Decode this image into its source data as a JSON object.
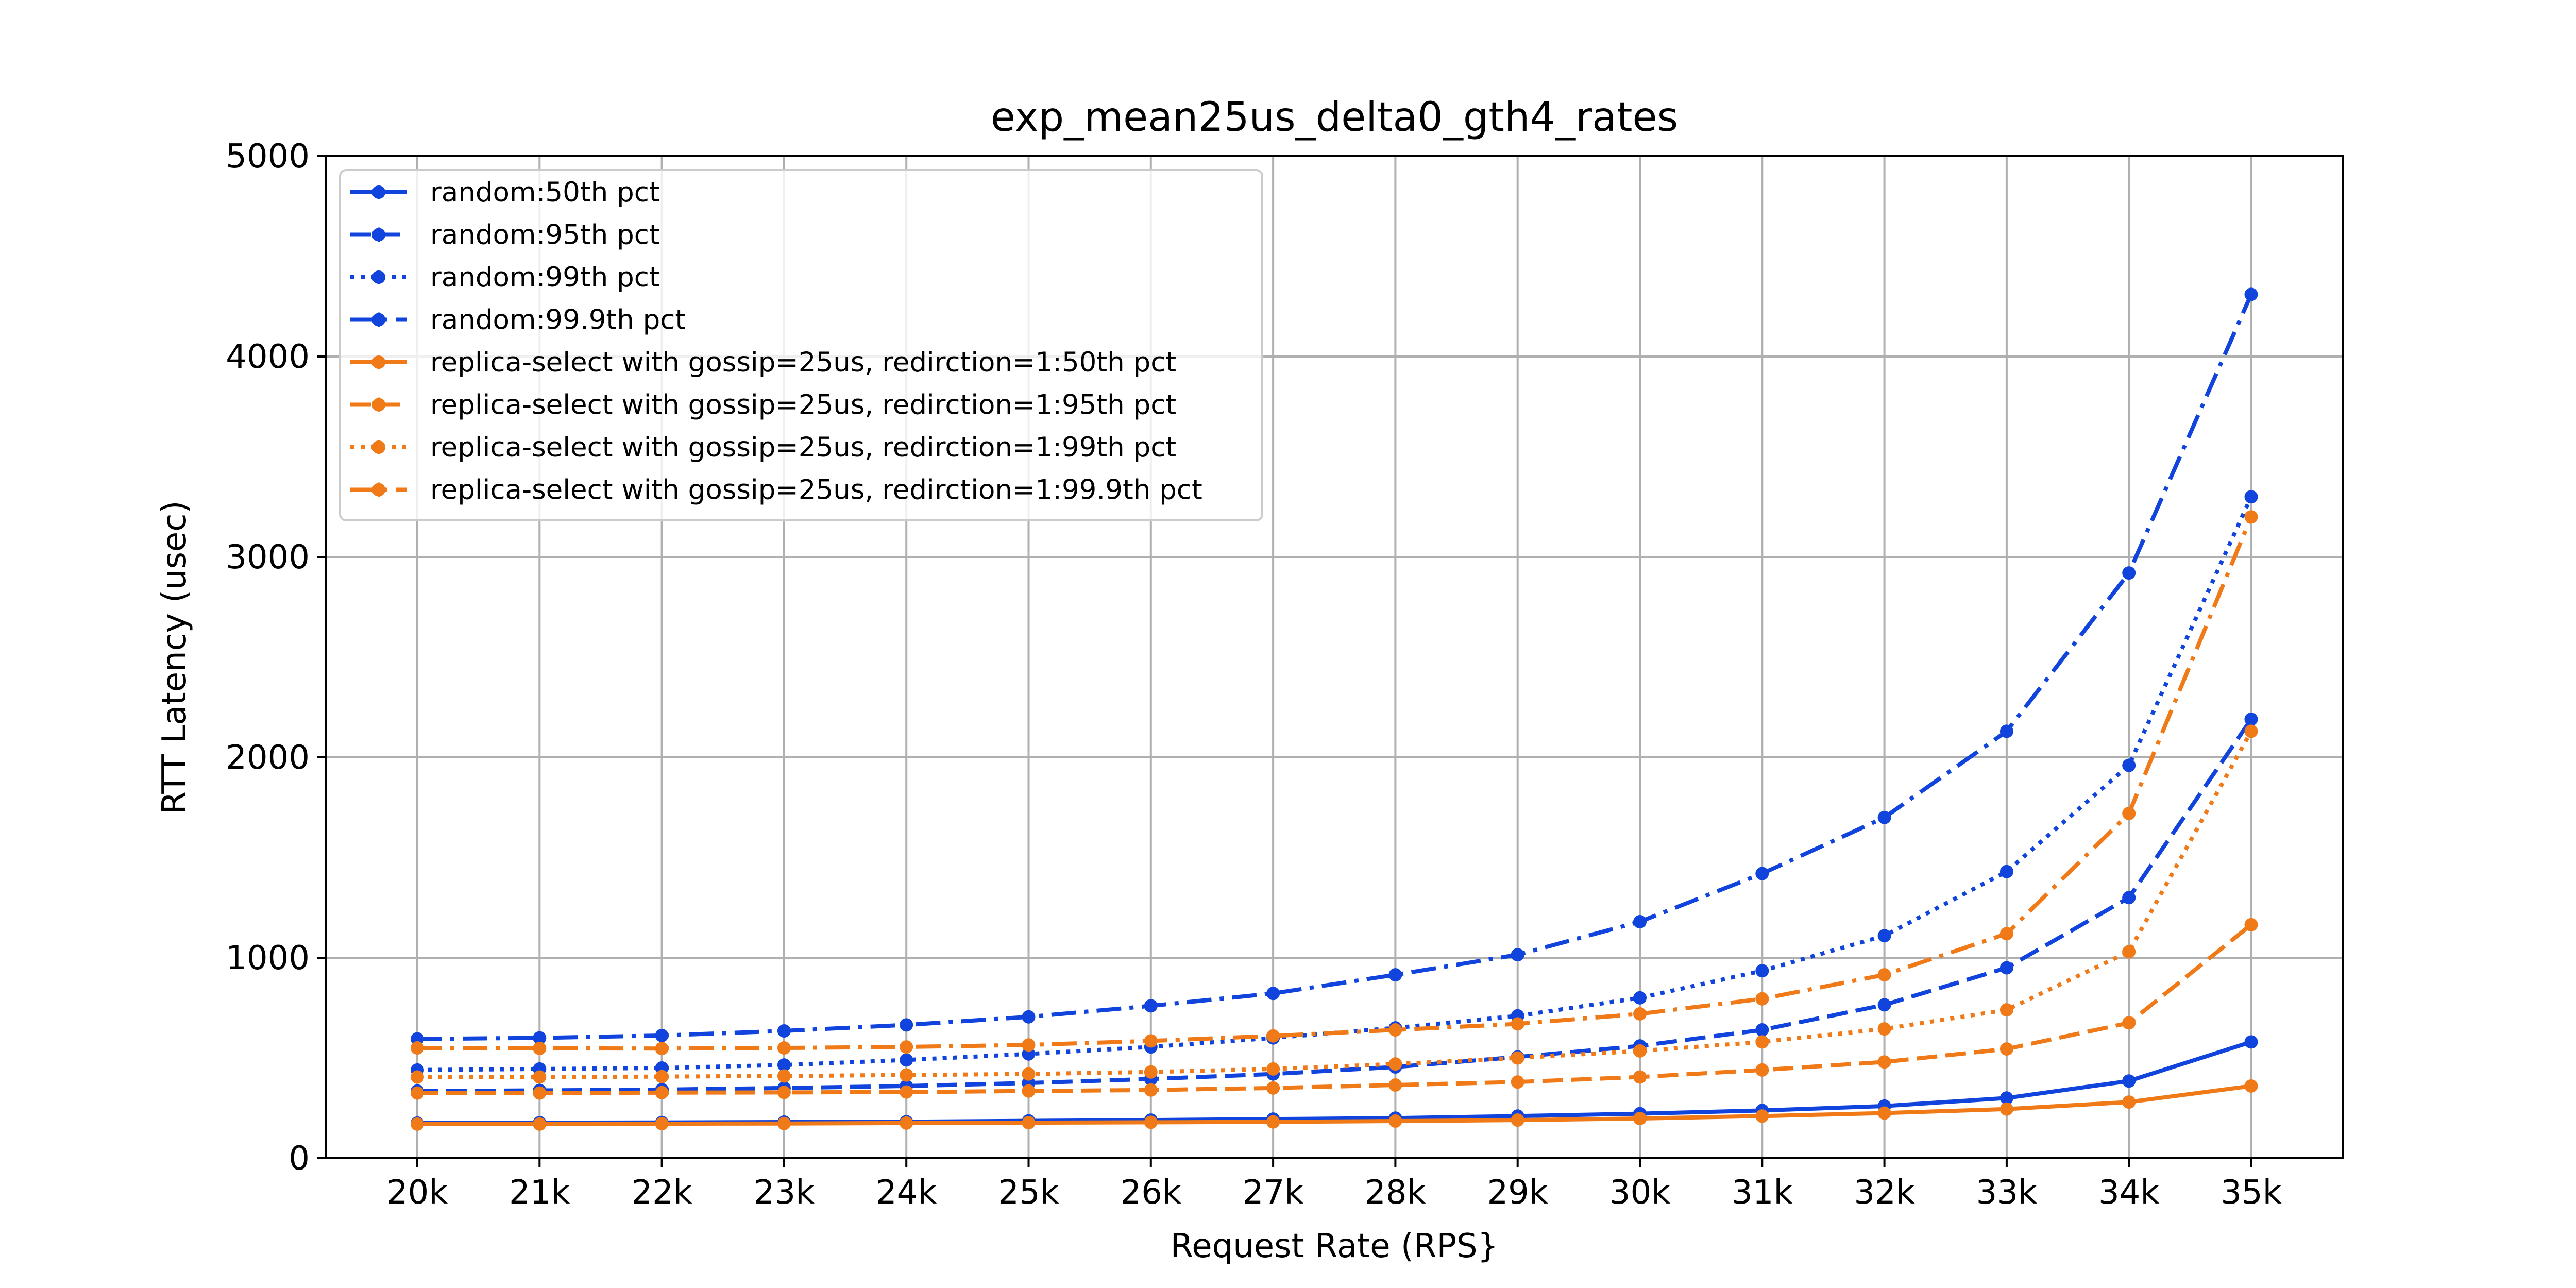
{
  "chart_data": {
    "type": "line",
    "title": "exp_mean25us_delta0_gth4_rates",
    "xlabel": "Request Rate (RPS}",
    "ylabel": "RTT Latency (usec)",
    "categories": [
      "20k",
      "21k",
      "22k",
      "23k",
      "24k",
      "25k",
      "26k",
      "27k",
      "28k",
      "29k",
      "30k",
      "31k",
      "32k",
      "33k",
      "34k",
      "35k"
    ],
    "ylim": [
      0,
      5000
    ],
    "yticks": [
      0,
      1000,
      2000,
      3000,
      4000,
      5000
    ],
    "grid": true,
    "legend_position": "upper-left",
    "colors": {
      "random": "#1144dd",
      "replica": "#f07a18"
    },
    "series": [
      {
        "name": "random:50th pct",
        "color": "#1144dd",
        "linestyle": "solid",
        "values": [
          175,
          177,
          178,
          180,
          182,
          186,
          190,
          195,
          200,
          210,
          222,
          238,
          260,
          300,
          385,
          580
        ]
      },
      {
        "name": "random:95th pct",
        "color": "#1144dd",
        "linestyle": "dashed",
        "values": [
          335,
          338,
          342,
          350,
          360,
          375,
          395,
          420,
          455,
          505,
          560,
          640,
          765,
          950,
          1300,
          2190
        ]
      },
      {
        "name": "random:99th pct",
        "color": "#1144dd",
        "linestyle": "dotted",
        "values": [
          440,
          445,
          450,
          465,
          490,
          520,
          555,
          600,
          650,
          710,
          800,
          935,
          1110,
          1430,
          1960,
          3300
        ]
      },
      {
        "name": "random:99.9th pct",
        "color": "#1144dd",
        "linestyle": "dashdot",
        "values": [
          595,
          600,
          612,
          635,
          665,
          705,
          760,
          822,
          915,
          1015,
          1180,
          1420,
          1700,
          2130,
          2920,
          4310
        ]
      },
      {
        "name": "replica-select with gossip=25us, redirction=1:50th pct",
        "color": "#f07a18",
        "linestyle": "solid",
        "values": [
          170,
          170,
          172,
          173,
          175,
          177,
          179,
          181,
          185,
          190,
          198,
          210,
          225,
          245,
          280,
          360
        ]
      },
      {
        "name": "replica-select with gossip=25us, redirction=1:95th pct",
        "color": "#f07a18",
        "linestyle": "dashed",
        "values": [
          325,
          325,
          327,
          328,
          330,
          335,
          340,
          350,
          365,
          380,
          405,
          440,
          480,
          545,
          675,
          1165
        ]
      },
      {
        "name": "replica-select with gossip=25us, redirction=1:99th pct",
        "color": "#f07a18",
        "linestyle": "dotted",
        "values": [
          405,
          405,
          407,
          410,
          415,
          420,
          430,
          445,
          470,
          500,
          535,
          580,
          645,
          740,
          1030,
          2130
        ]
      },
      {
        "name": "replica-select with gossip=25us, redirction=1:99.9th pct",
        "color": "#f07a18",
        "linestyle": "dashdot",
        "values": [
          550,
          548,
          547,
          550,
          555,
          565,
          585,
          610,
          640,
          670,
          720,
          795,
          915,
          1120,
          1720,
          3200
        ]
      }
    ]
  }
}
